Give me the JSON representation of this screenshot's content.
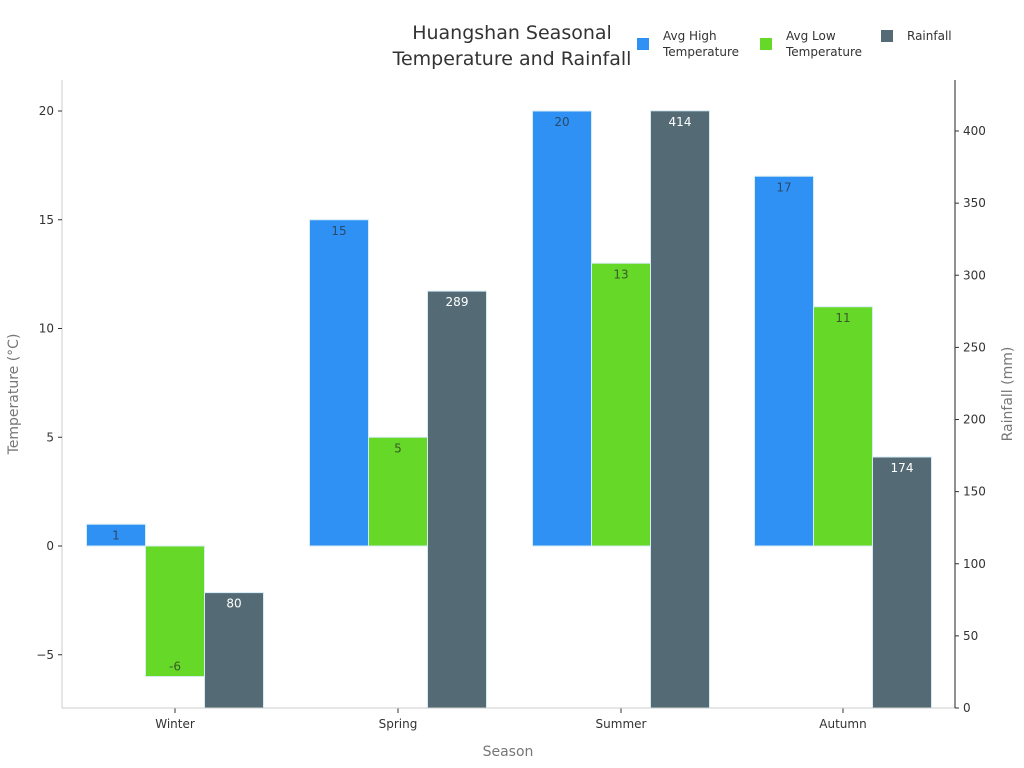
{
  "chart_data": {
    "type": "bar",
    "title": "Huangshan Seasonal\nTemperature and Rainfall",
    "title_lines": [
      "Huangshan Seasonal",
      "Temperature and Rainfall"
    ],
    "xlabel": "Season",
    "ylabel": "Temperature (°C)",
    "ylabel_right": "Rainfall (mm)",
    "categories": [
      "Winter",
      "Spring",
      "Summer",
      "Autumn"
    ],
    "series": [
      {
        "name": "Avg High Temperature",
        "axis": "left",
        "color": "#2f91f4",
        "label_color": "#2a4a6a",
        "values": [
          1,
          15,
          20,
          17
        ]
      },
      {
        "name": "Avg Low Temperature",
        "axis": "left",
        "color": "#66d928",
        "label_color": "#3a5a2a",
        "values": [
          -6,
          5,
          13,
          11
        ]
      },
      {
        "name": "Rainfall",
        "axis": "right",
        "color": "#546b75",
        "label_color": "#ffffff",
        "values": [
          80,
          289,
          414,
          174
        ]
      }
    ],
    "ylim": [
      -7.45,
      21.4
    ],
    "ylim_right": [
      0,
      435
    ],
    "yticks": [
      -5,
      0,
      5,
      10,
      15,
      20
    ],
    "yticks_right": [
      0,
      50,
      100,
      150,
      200,
      250,
      300,
      350,
      400
    ],
    "grid": false,
    "legend_position": "top-right"
  },
  "legend": {
    "items": [
      {
        "lines": [
          "Avg High",
          "Temperature"
        ],
        "color": "#2f91f4"
      },
      {
        "lines": [
          "Avg Low",
          "Temperature"
        ],
        "color": "#66d928"
      },
      {
        "lines": [
          "Rainfall"
        ],
        "color": "#546b75"
      }
    ]
  }
}
